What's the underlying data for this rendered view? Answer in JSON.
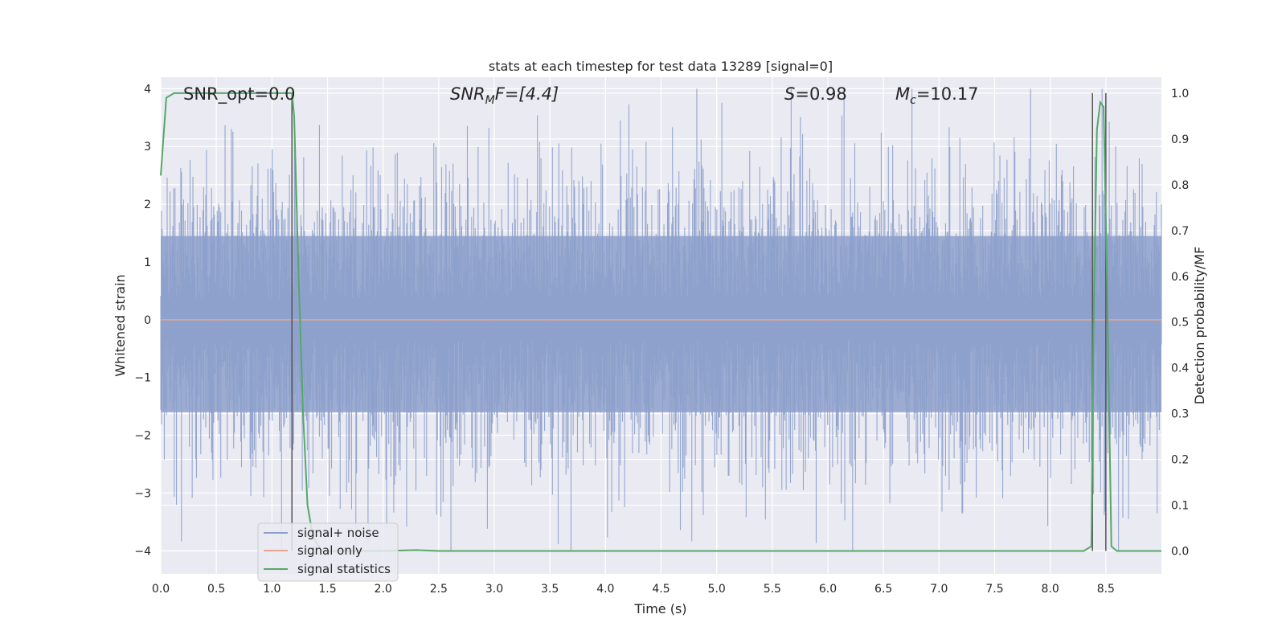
{
  "chart_data": {
    "type": "line",
    "title": "stats at each timestep for test data 13289 [signal=0]",
    "xlabel": "Time (s)",
    "ylabel": "Whitened strain",
    "y2label": "Detection probability/MF",
    "xlim": [
      0,
      9.0
    ],
    "ylim": [
      -4.4,
      4.2
    ],
    "y2lim": [
      -0.05,
      1.035
    ],
    "xticks": [
      "0.0",
      "0.5",
      "1.0",
      "1.5",
      "2.0",
      "2.5",
      "3.0",
      "3.5",
      "4.0",
      "4.5",
      "5.0",
      "5.5",
      "6.0",
      "6.5",
      "7.0",
      "7.5",
      "8.0",
      "8.5"
    ],
    "yticks": [
      "4",
      "3",
      "2",
      "1",
      "0",
      "−1",
      "−2",
      "−3",
      "−4"
    ],
    "y2ticks": [
      "1.0",
      "0.9",
      "0.8",
      "0.7",
      "0.6",
      "0.5",
      "0.4",
      "0.3",
      "0.2",
      "0.1",
      "0.0"
    ],
    "grid": true,
    "legend_position": "lower-left",
    "annotations": {
      "snr_opt": "SNR_opt=0.0",
      "snr_mf_main": "SNR",
      "snr_mf_sub": "M",
      "snr_mf_rest": "F=[4.4]",
      "s_main": "S",
      "s_rest": "=0.98",
      "mc_main": "M",
      "mc_sub": "c",
      "mc_rest": "=10.17"
    },
    "series": [
      {
        "name": "signal+ noise",
        "color": "#8da0cb",
        "axis": "left",
        "noise": {
          "rms": 1.0,
          "samples": 1400,
          "x_start": 0,
          "x_end": 9.0
        }
      },
      {
        "name": "signal only",
        "color": "#e8a58b",
        "axis": "left",
        "x": [
          0,
          9.0
        ],
        "y": [
          0,
          0
        ]
      },
      {
        "name": "signal statistics",
        "color": "#55a868",
        "axis": "right",
        "x": [
          0,
          0.05,
          0.12,
          0.5,
          1.0,
          1.15,
          1.18,
          1.2,
          1.24,
          1.28,
          1.32,
          1.37,
          1.45,
          1.6,
          2.0,
          2.3,
          2.5,
          3.0,
          5.0,
          7.0,
          8.3,
          8.37,
          8.39,
          8.42,
          8.45,
          8.48,
          8.51,
          8.55,
          8.6,
          9.0
        ],
        "y": [
          0.82,
          0.99,
          1.0,
          1.0,
          1.0,
          1.0,
          1.0,
          0.95,
          0.6,
          0.3,
          0.1,
          0.03,
          0.0,
          0.0,
          0.0,
          0.002,
          0.0,
          0.0,
          0.0,
          0.0,
          0.0,
          0.01,
          0.5,
          0.92,
          0.98,
          0.97,
          0.6,
          0.01,
          0.0,
          0.0
        ]
      }
    ],
    "vlines": [
      1.18,
      8.38,
      8.5
    ],
    "vline_color": "#555555"
  }
}
